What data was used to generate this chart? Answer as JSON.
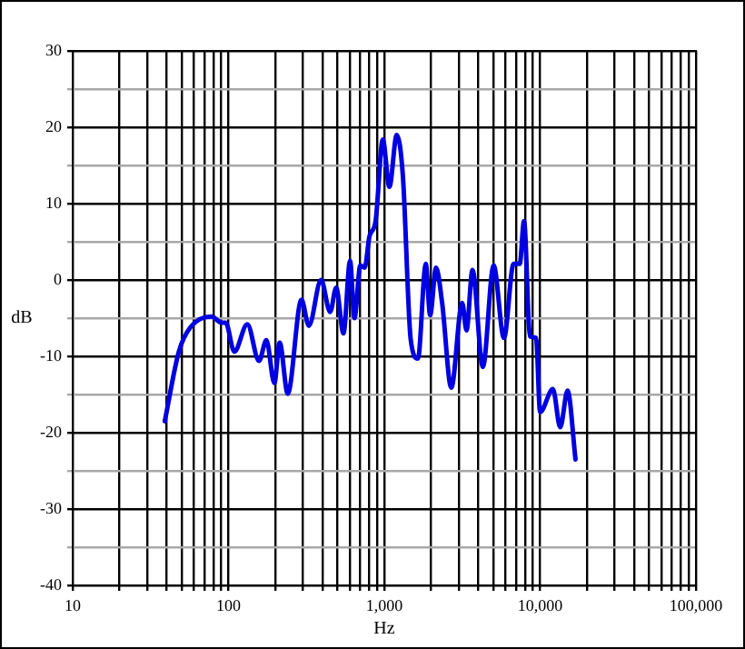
{
  "chart_data": {
    "type": "line",
    "xlabel": "Hz",
    "ylabel": "dB",
    "x": [
      39,
      48,
      57,
      78,
      90,
      96,
      109,
      132,
      157,
      175,
      197,
      213,
      240,
      294,
      328,
      393,
      449,
      491,
      547,
      603,
      643,
      702,
      748,
      803,
      879,
      978,
      1078,
      1202,
      1316,
      1477,
      1644,
      1846,
      1968,
      2150,
      2350,
      2690,
      3160,
      3370,
      3680,
      4290,
      5030,
      5860,
      6760,
      7400,
      7880,
      8610,
      9420,
      10000,
      12080,
      13460,
      15000,
      16870
    ],
    "series": [
      {
        "color": "#0000e0",
        "values": [
          -18.5,
          -9.4,
          -6.2,
          -4.8,
          -5.6,
          -5.6,
          -9.4,
          -5.8,
          -10.6,
          -7.9,
          -13.5,
          -8.2,
          -14.9,
          -2.6,
          -6.0,
          0.0,
          -4.2,
          -1.0,
          -7.0,
          2.5,
          -5.0,
          1.9,
          1.6,
          5.7,
          7.7,
          18.4,
          12.2,
          19.0,
          13.6,
          -7.8,
          -10.3,
          2.1,
          -4.6,
          1.6,
          -3.0,
          -14.1,
          -3.0,
          -6.6,
          1.3,
          -11.4,
          1.9,
          -7.6,
          2.1,
          2.1,
          7.7,
          -7.4,
          -7.6,
          -17.3,
          -14.3,
          -19.3,
          -14.5,
          -23.5
        ]
      }
    ],
    "log": "x",
    "xlim": [
      10,
      100000
    ],
    "xticks": [
      10,
      {
        "value": 20,
        "label": null
      },
      {
        "value": 30,
        "label": null
      },
      {
        "value": 40,
        "label": null
      },
      {
        "value": 50,
        "label": null
      },
      {
        "value": 60,
        "label": null
      },
      {
        "value": 70,
        "label": null
      },
      {
        "value": 80,
        "label": null
      },
      {
        "value": 90,
        "label": null
      },
      100,
      {
        "value": 200,
        "label": null
      },
      {
        "value": 300,
        "label": null
      },
      {
        "value": 400,
        "label": null
      },
      {
        "value": 500,
        "label": null
      },
      {
        "value": 600,
        "label": null
      },
      {
        "value": 700,
        "label": null
      },
      {
        "value": 800,
        "label": null
      },
      {
        "value": 900,
        "label": null
      },
      {
        "value": 1000,
        "label": "1,000"
      },
      {
        "value": 2000,
        "label": null
      },
      {
        "value": 3000,
        "label": null
      },
      {
        "value": 4000,
        "label": null
      },
      {
        "value": 5000,
        "label": null
      },
      {
        "value": 6000,
        "label": null
      },
      {
        "value": 7000,
        "label": null
      },
      {
        "value": 8000,
        "label": null
      },
      {
        "value": 9000,
        "label": null
      },
      {
        "value": 10000,
        "label": "10,000"
      },
      {
        "value": 20000,
        "label": null
      },
      {
        "value": 30000,
        "label": null
      },
      {
        "value": 40000,
        "label": null
      },
      {
        "value": 50000,
        "label": null
      },
      {
        "value": 60000,
        "label": null
      },
      {
        "value": 70000,
        "label": null
      },
      {
        "value": 80000,
        "label": null
      },
      {
        "value": 90000,
        "label": null
      },
      {
        "value": 100000,
        "label": "100,000"
      }
    ],
    "ylim": [
      -40,
      30
    ],
    "yticks": [
      -40,
      {
        "value": -35,
        "label": null
      },
      -30,
      {
        "value": -25,
        "label": null
      },
      -20,
      {
        "value": -15,
        "label": null
      },
      -10,
      {
        "value": -5,
        "label": null
      },
      0,
      {
        "value": 5,
        "label": null
      },
      10,
      {
        "value": 15,
        "label": null
      },
      20,
      {
        "value": 25,
        "label": null
      },
      30
    ],
    "grid": true,
    "legend": false,
    "marker": "none",
    "line_style": "solid"
  }
}
